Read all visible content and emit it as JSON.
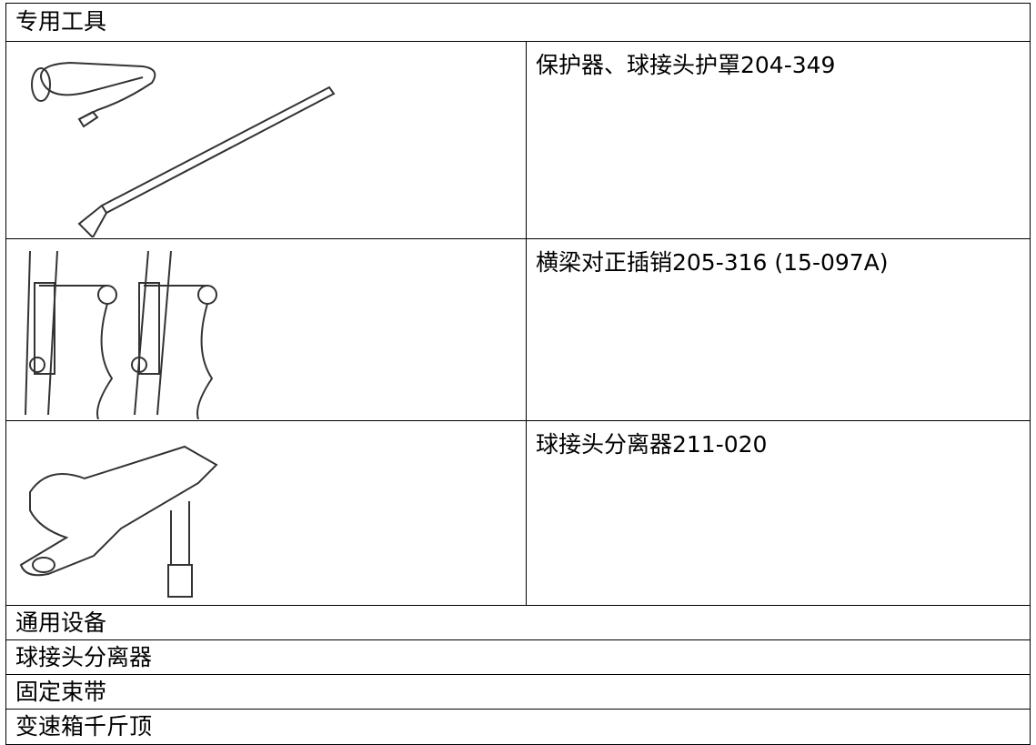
{
  "table": {
    "header": "专用工具",
    "tools": [
      {
        "label": "保护器、球接头护罩204-349"
      },
      {
        "label": "横梁对正插销205-316 (15-097A)"
      },
      {
        "label": "球接头分离器211-020"
      }
    ],
    "general_header": "通用设备",
    "general_items": [
      "球接头分离器",
      "固定束带",
      "变速箱千斤顶"
    ]
  }
}
